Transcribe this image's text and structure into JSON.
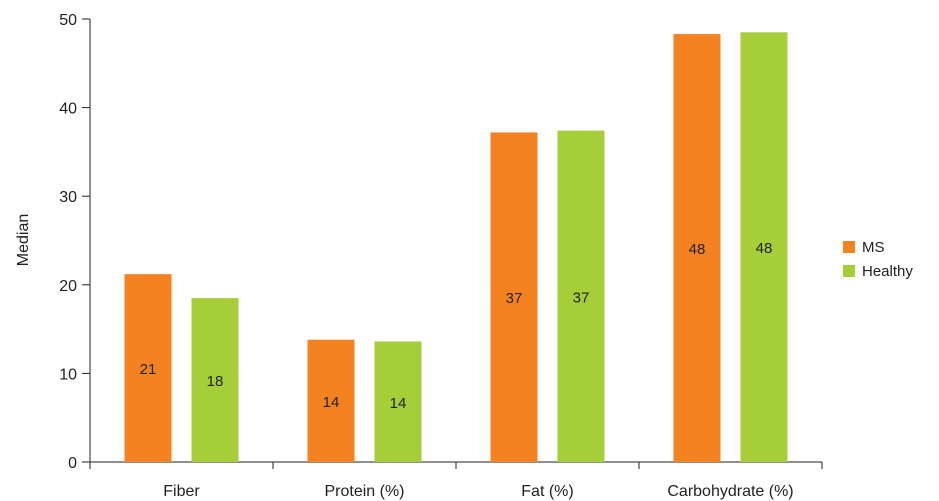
{
  "chart_data": {
    "type": "bar",
    "categories": [
      "Fiber",
      "Protein (%)",
      "Fat (%)",
      "Carbohydrate (%)"
    ],
    "series": [
      {
        "name": "MS",
        "color": "#f58220",
        "values": [
          21.2,
          13.8,
          37.2,
          48.3
        ],
        "labels": [
          "21",
          "14",
          "37",
          "48"
        ]
      },
      {
        "name": "Healthy",
        "color": "#a6ce39",
        "values": [
          18.5,
          13.6,
          37.4,
          48.5
        ],
        "labels": [
          "18",
          "14",
          "37",
          "48"
        ]
      }
    ],
    "ylabel": "Median",
    "ylim": [
      0,
      50
    ],
    "yticks": [
      0,
      10,
      20,
      30,
      40,
      50
    ],
    "grid": false,
    "legend_position": "right"
  }
}
